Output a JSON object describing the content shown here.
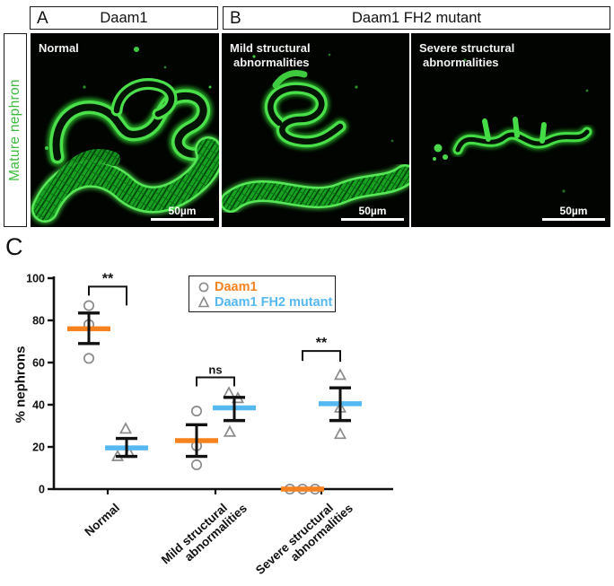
{
  "figure": {
    "panel_a": {
      "letter": "A",
      "title": "Daam1"
    },
    "panel_b": {
      "letter": "B",
      "title": "Daam1 FH2 mutant"
    },
    "side_label": {
      "text": "Mature nephron",
      "color": "#3DBB3D"
    },
    "images": [
      {
        "label_lines": [
          "Normal"
        ],
        "scale": "50µm"
      },
      {
        "label_lines": [
          "Mild structural",
          "abnormalities"
        ],
        "scale": "50µm"
      },
      {
        "label_lines": [
          "Severe structural",
          "abnormalities"
        ],
        "scale": "50µm"
      }
    ],
    "panel_c": {
      "letter": "C"
    }
  },
  "chart_data": {
    "type": "scatter",
    "title": "",
    "xlabel": "",
    "ylabel": "% nephrons",
    "ylim": [
      0,
      100
    ],
    "yticks": [
      0,
      20,
      40,
      60,
      80,
      100
    ],
    "grid": false,
    "legend_position": "top-right",
    "categories": [
      [
        "Normal"
      ],
      [
        "Mild structural",
        "abnormalities"
      ],
      [
        "Severe structural",
        "abnormalities"
      ]
    ],
    "series": [
      {
        "name": "Daam1",
        "color": "#F5821F",
        "marker": "circle",
        "marker_edge": "#8a8a8a",
        "groups": [
          {
            "points": [
              87,
              78,
              62
            ],
            "jitter": [
              0,
              0,
              0
            ],
            "mean": 76,
            "err": [
              69,
              83.5
            ]
          },
          {
            "points": [
              37,
              20.5,
              11.5
            ],
            "jitter": [
              0,
              0,
              0
            ],
            "mean": 23,
            "err": [
              15.5,
              30.5
            ]
          },
          {
            "points": [
              0,
              0,
              0
            ],
            "jitter": [
              -14,
              0,
              14
            ],
            "mean": 0,
            "err": null
          }
        ]
      },
      {
        "name": "Daam1 FH2 mutant",
        "color": "#55B8F0",
        "marker": "triangle",
        "marker_edge": "#8a8a8a",
        "groups": [
          {
            "points": [
              28.5,
              17,
              15.5
            ],
            "jitter": [
              -1,
              3,
              -10
            ],
            "mean": 19.5,
            "err": [
              15.5,
              24
            ]
          },
          {
            "points": [
              45.5,
              43,
              27
            ],
            "jitter": [
              -6,
              4,
              -5
            ],
            "mean": 38.5,
            "err": [
              32.5,
              43.5
            ]
          },
          {
            "points": [
              54,
              38.5,
              26
            ],
            "jitter": [
              0,
              0,
              0
            ],
            "mean": 40.5,
            "err": [
              32.5,
              48
            ]
          }
        ]
      }
    ],
    "significance": [
      {
        "category": 0,
        "label": "**",
        "bar_y": 96,
        "legs": [
          10,
          21
        ]
      },
      {
        "category": 1,
        "label": "ns",
        "bar_y": 53,
        "legs": [
          10,
          10
        ]
      },
      {
        "category": 2,
        "label": "**",
        "bar_y": 65.5,
        "legs": [
          11,
          12
        ]
      }
    ]
  }
}
